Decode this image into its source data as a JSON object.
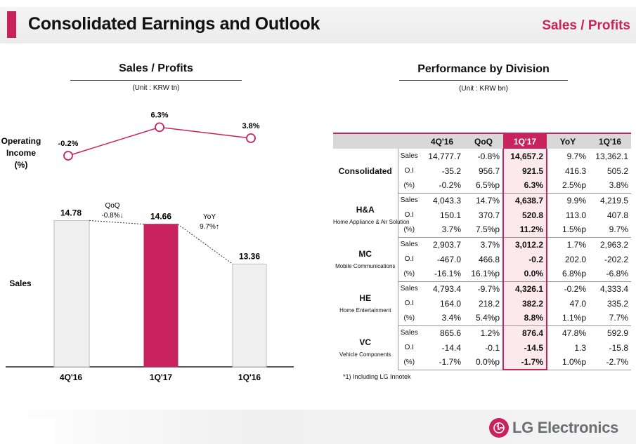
{
  "header": {
    "title": "Consolidated Earnings and Outlook",
    "tag": "Sales / Profits"
  },
  "left": {
    "title": "Sales / Profits",
    "unit": "(Unit : KRW tn)",
    "oi_label_1": "Operating",
    "oi_label_2": "Income",
    "oi_label_3": "(%)",
    "sales_label": "Sales"
  },
  "right": {
    "title": "Performance by Division",
    "unit": "(Unit : KRW bn)",
    "footnote": "*1) Including LG Innotek"
  },
  "colors": {
    "accent": "#c8235c",
    "bar_gray": "#f0f0f0",
    "header_gray": "#d8d8d8"
  },
  "chart_data": {
    "type": "bar",
    "title": "Sales / Profits",
    "categories": [
      "4Q'16",
      "1Q'17",
      "1Q'16"
    ],
    "series": [
      {
        "name": "Sales",
        "unit": "KRW tn",
        "values": [
          14.78,
          14.66,
          13.36
        ],
        "labels": [
          "14.78",
          "14.66",
          "13.36"
        ]
      },
      {
        "name": "Operating Income (%)",
        "type": "line",
        "values": [
          -0.2,
          6.3,
          3.8
        ],
        "labels": [
          "-0.2%",
          "6.3%",
          "3.8%"
        ]
      }
    ],
    "annotations": [
      {
        "from": "4Q'16",
        "to": "1Q'17",
        "line1": "QoQ",
        "line2": "-0.8%↓"
      },
      {
        "from": "1Q'17",
        "to": "1Q'16",
        "line1": "YoY",
        "line2": "9.7%↑"
      }
    ],
    "highlight": "1Q'17"
  },
  "table": {
    "columns": [
      "4Q'16",
      "QoQ",
      "1Q'17",
      "YoY",
      "1Q'16"
    ],
    "divisions": [
      {
        "name": "Consolidated",
        "sub": "",
        "rows": [
          {
            "label": "Sales",
            "vals": [
              "14,777.7",
              "-0.8%",
              "14,657.2",
              "9.7%",
              "13,362.1"
            ]
          },
          {
            "label": "O.I",
            "vals": [
              "-35.2",
              "956.7",
              "921.5",
              "416.3",
              "505.2"
            ]
          },
          {
            "label": "(%)",
            "vals": [
              "-0.2%",
              "6.5%p",
              "6.3%",
              "2.5%p",
              "3.8%"
            ]
          }
        ]
      },
      {
        "name": "H&A",
        "sub": "Home Appliance & Air Solution",
        "rows": [
          {
            "label": "Sales",
            "vals": [
              "4,043.3",
              "14.7%",
              "4,638.7",
              "9.9%",
              "4,219.5"
            ]
          },
          {
            "label": "O.I",
            "vals": [
              "150.1",
              "370.7",
              "520.8",
              "113.0",
              "407.8"
            ]
          },
          {
            "label": "(%)",
            "vals": [
              "3.7%",
              "7.5%p",
              "11.2%",
              "1.5%p",
              "9.7%"
            ]
          }
        ]
      },
      {
        "name": "MC",
        "sub": "Mobile Communications",
        "rows": [
          {
            "label": "Sales",
            "vals": [
              "2,903.7",
              "3.7%",
              "3,012.2",
              "1.7%",
              "2,963.2"
            ]
          },
          {
            "label": "O.I",
            "vals": [
              "-467.0",
              "466.8",
              "-0.2",
              "202.0",
              "-202.2"
            ]
          },
          {
            "label": "(%)",
            "vals": [
              "-16.1%",
              "16.1%p",
              "0.0%",
              "6.8%p",
              "-6.8%"
            ]
          }
        ]
      },
      {
        "name": "HE",
        "sub": "Home Entertainment",
        "rows": [
          {
            "label": "Sales",
            "vals": [
              "4,793.4",
              "-9.7%",
              "4,326.1",
              "-0.2%",
              "4,333.4"
            ]
          },
          {
            "label": "O.I",
            "vals": [
              "164.0",
              "218.2",
              "382.2",
              "47.0",
              "335.2"
            ]
          },
          {
            "label": "(%)",
            "vals": [
              "3.4%",
              "5.4%p",
              "8.8%",
              "1.1%p",
              "7.7%"
            ]
          }
        ]
      },
      {
        "name": "VC",
        "sub": "Vehicle Components",
        "rows": [
          {
            "label": "Sales",
            "vals": [
              "865.6",
              "1.2%",
              "876.4",
              "47.8%",
              "592.9"
            ]
          },
          {
            "label": "O.I",
            "vals": [
              "-14.4",
              "-0.1",
              "-14.5",
              "1.3",
              "-15.8"
            ]
          },
          {
            "label": "(%)",
            "vals": [
              "-1.7%",
              "0.0%p",
              "-1.7%",
              "1.0%p",
              "-2.7%"
            ]
          }
        ]
      }
    ]
  },
  "footer": {
    "logo_text": "LG Electronics"
  }
}
